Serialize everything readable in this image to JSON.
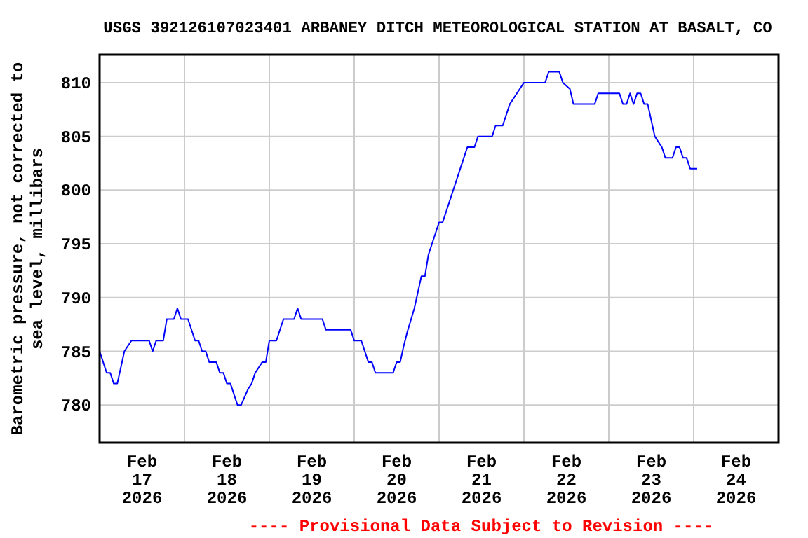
{
  "chart_data": {
    "type": "line",
    "title": "USGS 392126107023401 ARBANEY DITCH METEOROLOGICAL STATION AT BASALT, CO",
    "ylabel": "Barometric pressure, not corrected to\nsea level, millibars",
    "annotations": [
      "---- Provisional Data Subject to Revision ----"
    ],
    "x": [
      "2026-02-17T00:00",
      "2026-02-17T02:00",
      "2026-02-17T03:00",
      "2026-02-17T04:00",
      "2026-02-17T05:00",
      "2026-02-17T07:00",
      "2026-02-17T09:00",
      "2026-02-17T14:00",
      "2026-02-17T15:00",
      "2026-02-17T16:00",
      "2026-02-17T18:00",
      "2026-02-17T19:00",
      "2026-02-17T21:00",
      "2026-02-17T22:00",
      "2026-02-17T23:00",
      "2026-02-18T01:00",
      "2026-02-18T03:00",
      "2026-02-18T04:00",
      "2026-02-18T05:00",
      "2026-02-18T06:00",
      "2026-02-18T07:00",
      "2026-02-18T09:00",
      "2026-02-18T10:00",
      "2026-02-18T11:00",
      "2026-02-18T12:00",
      "2026-02-18T13:00",
      "2026-02-18T15:00",
      "2026-02-18T16:00",
      "2026-02-18T18:00",
      "2026-02-18T19:00",
      "2026-02-18T20:00",
      "2026-02-18T22:00",
      "2026-02-18T23:00",
      "2026-02-19T00:00",
      "2026-02-19T02:00",
      "2026-02-19T04:00",
      "2026-02-19T07:00",
      "2026-02-19T08:00",
      "2026-02-19T09:00",
      "2026-02-19T15:00",
      "2026-02-19T16:00",
      "2026-02-19T23:00",
      "2026-02-20T00:00",
      "2026-02-20T02:00",
      "2026-02-20T03:00",
      "2026-02-20T04:00",
      "2026-02-20T05:00",
      "2026-02-20T06:00",
      "2026-02-20T11:00",
      "2026-02-20T12:00",
      "2026-02-20T13:00",
      "2026-02-20T14:00",
      "2026-02-20T15:00",
      "2026-02-20T17:00",
      "2026-02-20T19:00",
      "2026-02-20T20:00",
      "2026-02-20T21:00",
      "2026-02-20T23:00",
      "2026-02-21T00:00",
      "2026-02-21T01:00",
      "2026-02-21T03:00",
      "2026-02-21T05:00",
      "2026-02-21T06:00",
      "2026-02-21T08:00",
      "2026-02-21T10:00",
      "2026-02-21T11:00",
      "2026-02-21T15:00",
      "2026-02-21T16:00",
      "2026-02-21T18:00",
      "2026-02-21T20:00",
      "2026-02-21T22:00",
      "2026-02-22T00:00",
      "2026-02-22T06:00",
      "2026-02-22T07:00",
      "2026-02-22T10:00",
      "2026-02-22T11:00",
      "2026-02-22T13:00",
      "2026-02-22T14:00",
      "2026-02-22T20:00",
      "2026-02-22T21:00",
      "2026-02-23T03:00",
      "2026-02-23T04:00",
      "2026-02-23T05:00",
      "2026-02-23T06:00",
      "2026-02-23T07:00",
      "2026-02-23T08:00",
      "2026-02-23T09:00",
      "2026-02-23T10:00",
      "2026-02-23T11:00",
      "2026-02-23T13:00",
      "2026-02-23T15:00",
      "2026-02-23T16:00",
      "2026-02-23T18:00",
      "2026-02-23T19:00",
      "2026-02-23T20:00",
      "2026-02-23T21:00",
      "2026-02-23T22:00",
      "2026-02-23T23:00",
      "2026-02-24T01:00"
    ],
    "series": [
      {
        "color": "#0000ff",
        "values": [
          785,
          783,
          783,
          782,
          782,
          785,
          786,
          786,
          785,
          786,
          786,
          788,
          788,
          789,
          788,
          788,
          786,
          786,
          785,
          785,
          784,
          784,
          783,
          783,
          782,
          782,
          780,
          780,
          781.5,
          782,
          783,
          784,
          784,
          786,
          786,
          788,
          788,
          789,
          788,
          788,
          787,
          787,
          786,
          786,
          785,
          784,
          784,
          783,
          783,
          784,
          784,
          785.5,
          786.8,
          789,
          792,
          792,
          794,
          796,
          797,
          797,
          799,
          801,
          802,
          804,
          804,
          805,
          805,
          806,
          806,
          808,
          809,
          810,
          810,
          811,
          811,
          810,
          809.4,
          808,
          808,
          809,
          809,
          808,
          808,
          809,
          808,
          809,
          809,
          808,
          808,
          805,
          804,
          803,
          803,
          804,
          804,
          803,
          803,
          802,
          802
        ]
      }
    ],
    "xlim": [
      "2026-02-17T00:00",
      "2026-02-25T00:00"
    ],
    "xticks": [
      {
        "value": "2026-02-17T12:00",
        "label": "Feb\n17\n2026"
      },
      {
        "value": "2026-02-18T00:00",
        "label": null
      },
      {
        "value": "2026-02-18T12:00",
        "label": "Feb\n18\n2026"
      },
      {
        "value": "2026-02-19T00:00",
        "label": null
      },
      {
        "value": "2026-02-19T12:00",
        "label": "Feb\n19\n2026"
      },
      {
        "value": "2026-02-20T00:00",
        "label": null
      },
      {
        "value": "2026-02-20T12:00",
        "label": "Feb\n20\n2026"
      },
      {
        "value": "2026-02-21T00:00",
        "label": null
      },
      {
        "value": "2026-02-21T12:00",
        "label": "Feb\n21\n2026"
      },
      {
        "value": "2026-02-22T00:00",
        "label": null
      },
      {
        "value": "2026-02-22T12:00",
        "label": "Feb\n22\n2026"
      },
      {
        "value": "2026-02-23T00:00",
        "label": null
      },
      {
        "value": "2026-02-23T12:00",
        "label": "Feb\n23\n2026"
      },
      {
        "value": "2026-02-24T00:00",
        "label": null
      },
      {
        "value": "2026-02-24T12:00",
        "label": "Feb\n24\n2026"
      }
    ],
    "ylim": [
      776.5,
      812.6
    ],
    "yticks": [
      780,
      785,
      790,
      795,
      800,
      805,
      810
    ],
    "grid": true,
    "line_style": "solid",
    "marker": "none"
  }
}
